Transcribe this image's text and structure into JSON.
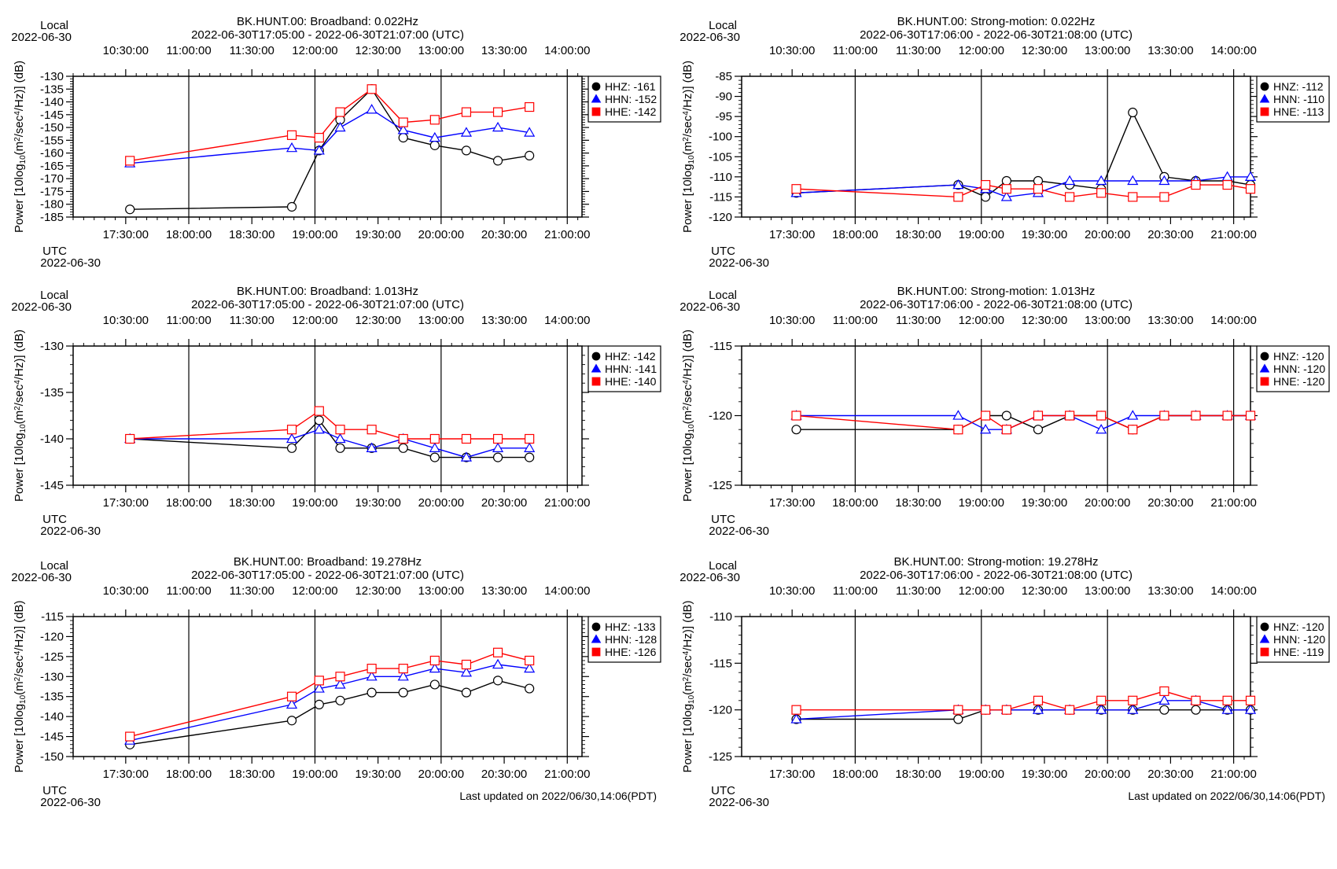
{
  "colors": {
    "black": "#000000",
    "blue": "#0000ff",
    "red": "#ff0000"
  },
  "ylabel_parts": [
    "Power [10log",
    "10",
    "(m",
    "2",
    "/sec",
    "4",
    "/Hz)] (dB)"
  ],
  "local_label": "Local",
  "utc_label": "UTC",
  "date_label": "2022-06-30",
  "local_ticks": [
    "10:30:00",
    "11:00:00",
    "11:30:00",
    "12:00:00",
    "12:30:00",
    "13:00:00",
    "13:30:00",
    "14:00:00"
  ],
  "utc_ticks": [
    "17:30:00",
    "18:00:00",
    "18:30:00",
    "19:00:00",
    "19:30:00",
    "20:00:00",
    "20:30:00",
    "21:00:00"
  ],
  "footer": "Last updated on 2022/06/30,14:06(PDT)",
  "chart_data": [
    {
      "type": "line",
      "title": "BK.HUNT.00: Broadband: 0.022Hz",
      "subtitle": "2022-06-30T17:05:00 - 2022-06-30T21:07:00 (UTC)",
      "xlim": [
        "17:05",
        "21:07"
      ],
      "ylim": [
        -185,
        -130
      ],
      "yticks": [
        -185,
        -180,
        -175,
        -170,
        -165,
        -160,
        -155,
        -150,
        -145,
        -140,
        -135,
        -130
      ],
      "ymajor": 5,
      "x": [
        "17:32",
        "18:49",
        "19:02",
        "19:12",
        "19:27",
        "19:42",
        "19:57",
        "20:12",
        "20:27",
        "20:42"
      ],
      "series": [
        {
          "name": "HHZ: -161",
          "marker": "circle",
          "color": "black",
          "values": [
            -182,
            -181,
            -159,
            -147,
            -135,
            -154,
            -157,
            -159,
            -163,
            -161
          ]
        },
        {
          "name": "HHN: -152",
          "marker": "triangle",
          "color": "blue",
          "values": [
            -164,
            -158,
            -159,
            -150,
            -143,
            -151,
            -154,
            -152,
            -150,
            -152
          ]
        },
        {
          "name": "HHE: -142",
          "marker": "square",
          "color": "red",
          "values": [
            -163,
            -153,
            -154,
            -144,
            -135,
            -148,
            -147,
            -144,
            -144,
            -142
          ]
        }
      ]
    },
    {
      "type": "line",
      "title": "BK.HUNT.00: Strong-motion: 0.022Hz",
      "subtitle": "2022-06-30T17:06:00 - 2022-06-30T21:08:00 (UTC)",
      "xlim": [
        "17:06",
        "21:08"
      ],
      "ylim": [
        -120,
        -85
      ],
      "yticks": [
        -120,
        -115,
        -110,
        -105,
        -100,
        -95,
        -90,
        -85
      ],
      "ymajor": 5,
      "x": [
        "17:32",
        "18:49",
        "19:02",
        "19:12",
        "19:27",
        "19:42",
        "19:57",
        "20:12",
        "20:27",
        "20:42",
        "20:57",
        "21:08"
      ],
      "series": [
        {
          "name": "HNZ: -112",
          "marker": "circle",
          "color": "black",
          "values": [
            -114,
            -112,
            -115,
            -111,
            -111,
            -112,
            -113,
            -94,
            -110,
            -111,
            -111,
            -112
          ]
        },
        {
          "name": "HNN: -110",
          "marker": "triangle",
          "color": "blue",
          "values": [
            -114,
            -112,
            -113,
            -115,
            -114,
            -111,
            -111,
            -111,
            -111,
            -111,
            -110,
            -110
          ]
        },
        {
          "name": "HNE: -113",
          "marker": "square",
          "color": "red",
          "values": [
            -113,
            -115,
            -112,
            -113,
            -113,
            -115,
            -114,
            -115,
            -115,
            -112,
            -112,
            -113
          ]
        }
      ]
    },
    {
      "type": "line",
      "title": "BK.HUNT.00: Broadband: 1.013Hz",
      "subtitle": "2022-06-30T17:05:00 - 2022-06-30T21:07:00 (UTC)",
      "xlim": [
        "17:05",
        "21:07"
      ],
      "ylim": [
        -145,
        -130
      ],
      "yticks": [
        -145,
        -140,
        -135,
        -130
      ],
      "ymajor": 5,
      "x": [
        "17:32",
        "18:49",
        "19:02",
        "19:12",
        "19:27",
        "19:42",
        "19:57",
        "20:12",
        "20:27",
        "20:42"
      ],
      "series": [
        {
          "name": "HHZ: -142",
          "marker": "circle",
          "color": "black",
          "values": [
            -140,
            -141,
            -138,
            -141,
            -141,
            -141,
            -142,
            -142,
            -142,
            -142
          ]
        },
        {
          "name": "HHN: -141",
          "marker": "triangle",
          "color": "blue",
          "values": [
            -140,
            -140,
            -139,
            -140,
            -141,
            -140,
            -141,
            -142,
            -141,
            -141
          ]
        },
        {
          "name": "HHE: -140",
          "marker": "square",
          "color": "red",
          "values": [
            -140,
            -139,
            -137,
            -139,
            -139,
            -140,
            -140,
            -140,
            -140,
            -140
          ]
        }
      ]
    },
    {
      "type": "line",
      "title": "BK.HUNT.00: Strong-motion: 1.013Hz",
      "subtitle": "2022-06-30T17:06:00 - 2022-06-30T21:08:00 (UTC)",
      "xlim": [
        "17:06",
        "21:08"
      ],
      "ylim": [
        -125,
        -115
      ],
      "yticks": [
        -125,
        -120,
        -115
      ],
      "ymajor": 5,
      "x": [
        "17:32",
        "18:49",
        "19:02",
        "19:12",
        "19:27",
        "19:42",
        "19:57",
        "20:12",
        "20:27",
        "20:42",
        "20:57",
        "21:08"
      ],
      "series": [
        {
          "name": "HNZ: -120",
          "marker": "circle",
          "color": "black",
          "values": [
            -121,
            -121,
            -120,
            -120,
            -121,
            -120,
            -120,
            -121,
            -120,
            -120,
            -120,
            -120
          ]
        },
        {
          "name": "HNN: -120",
          "marker": "triangle",
          "color": "blue",
          "values": [
            -120,
            -120,
            -121,
            -121,
            -120,
            -120,
            -121,
            -120,
            -120,
            -120,
            -120,
            -120
          ]
        },
        {
          "name": "HNE: -120",
          "marker": "square",
          "color": "red",
          "values": [
            -120,
            -121,
            -120,
            -121,
            -120,
            -120,
            -120,
            -121,
            -120,
            -120,
            -120,
            -120
          ]
        }
      ]
    },
    {
      "type": "line",
      "title": "BK.HUNT.00: Broadband: 19.278Hz",
      "subtitle": "2022-06-30T17:05:00 - 2022-06-30T21:07:00 (UTC)",
      "xlim": [
        "17:05",
        "21:07"
      ],
      "ylim": [
        -150,
        -115
      ],
      "yticks": [
        -150,
        -145,
        -140,
        -135,
        -130,
        -125,
        -120,
        -115
      ],
      "ymajor": 5,
      "x": [
        "17:32",
        "18:49",
        "19:02",
        "19:12",
        "19:27",
        "19:42",
        "19:57",
        "20:12",
        "20:27",
        "20:42"
      ],
      "series": [
        {
          "name": "HHZ: -133",
          "marker": "circle",
          "color": "black",
          "values": [
            -147,
            -141,
            -137,
            -136,
            -134,
            -134,
            -132,
            -134,
            -131,
            -133
          ]
        },
        {
          "name": "HHN: -128",
          "marker": "triangle",
          "color": "blue",
          "values": [
            -146,
            -137,
            -133,
            -132,
            -130,
            -130,
            -128,
            -129,
            -127,
            -128
          ]
        },
        {
          "name": "HHE: -126",
          "marker": "square",
          "color": "red",
          "values": [
            -145,
            -135,
            -131,
            -130,
            -128,
            -128,
            -126,
            -127,
            -124,
            -126
          ]
        }
      ]
    },
    {
      "type": "line",
      "title": "BK.HUNT.00: Strong-motion: 19.278Hz",
      "subtitle": "2022-06-30T17:06:00 - 2022-06-30T21:08:00 (UTC)",
      "xlim": [
        "17:06",
        "21:08"
      ],
      "ylim": [
        -125,
        -110
      ],
      "yticks": [
        -125,
        -120,
        -115,
        -110
      ],
      "ymajor": 5,
      "x": [
        "17:32",
        "18:49",
        "19:02",
        "19:12",
        "19:27",
        "19:42",
        "19:57",
        "20:12",
        "20:27",
        "20:42",
        "20:57",
        "21:08"
      ],
      "series": [
        {
          "name": "HNZ: -120",
          "marker": "circle",
          "color": "black",
          "values": [
            -121,
            -121,
            -120,
            -120,
            -120,
            -120,
            -120,
            -120,
            -120,
            -120,
            -120,
            -120
          ]
        },
        {
          "name": "HNN: -120",
          "marker": "triangle",
          "color": "blue",
          "values": [
            -121,
            -120,
            -120,
            -120,
            -120,
            -120,
            -120,
            -120,
            -119,
            -119,
            -120,
            -120
          ]
        },
        {
          "name": "HNE: -119",
          "marker": "square",
          "color": "red",
          "values": [
            -120,
            -120,
            -120,
            -120,
            -119,
            -120,
            -119,
            -119,
            -118,
            -119,
            -119,
            -119
          ]
        }
      ]
    }
  ]
}
